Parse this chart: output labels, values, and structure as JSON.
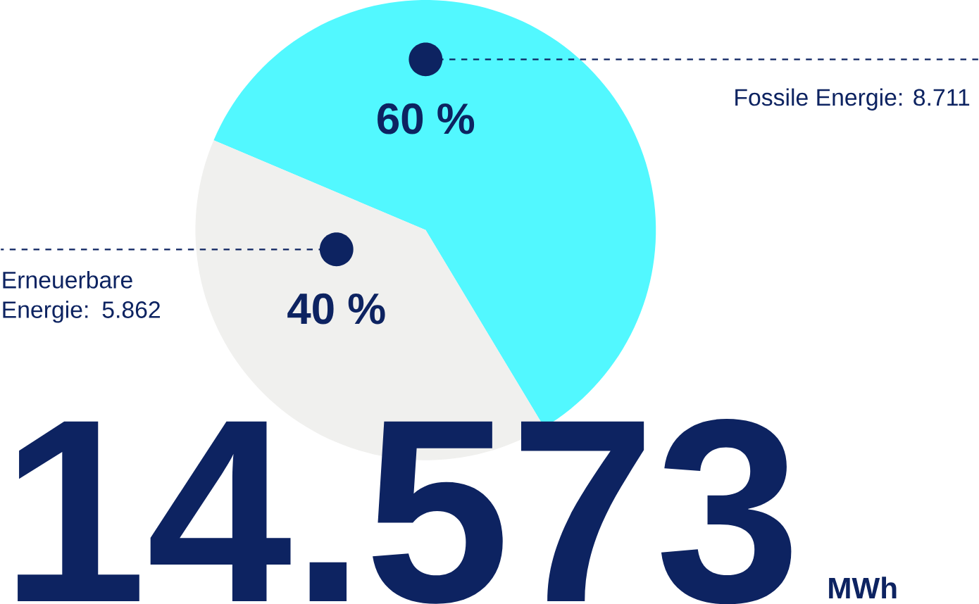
{
  "chart_data": {
    "type": "pie",
    "categories": [
      "Fossile Energie: 8.711",
      "Erneuerbare Energie: 5.862"
    ],
    "values": [
      60,
      40
    ],
    "colors": [
      "#52f8ff",
      "#f0f0ee"
    ],
    "value_labels": [
      "60 %",
      "40 %"
    ],
    "annotations": [
      "14.573",
      "MWh"
    ]
  }
}
